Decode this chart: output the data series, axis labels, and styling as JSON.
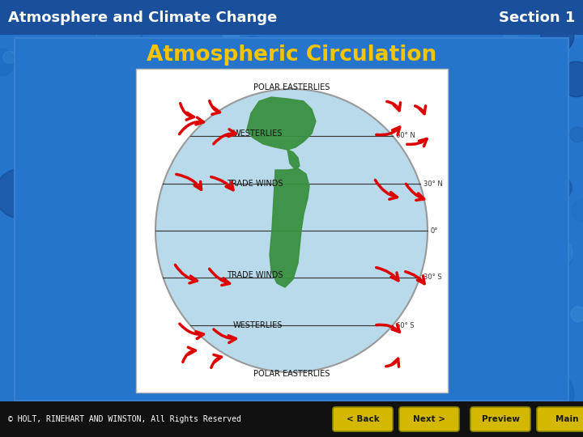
{
  "title_bar_text": "Atmosphere and Climate Change",
  "section_text": "Section 1",
  "slide_title": "Atmospheric Circulation",
  "footer_text": "© HOLT, RINEHART AND WINSTON, All Rights Reserved",
  "buttons": [
    "< Back",
    "Next >",
    "Preview",
    "Main"
  ],
  "bg_color": "#2575cc",
  "header_bg": "#1a4f9c",
  "slide_bg": "#2575cc",
  "header_text_color": "#ffffff",
  "slide_title_color": "#f5c400",
  "footer_bg": "#111111",
  "footer_text_color": "#ffffff",
  "button_color": "#d4b800",
  "button_text_color": "#1a1a00",
  "bubble_dark": "#0a2060",
  "bubble_mid": "#1060b0",
  "bubble_light": "#50a0e0"
}
